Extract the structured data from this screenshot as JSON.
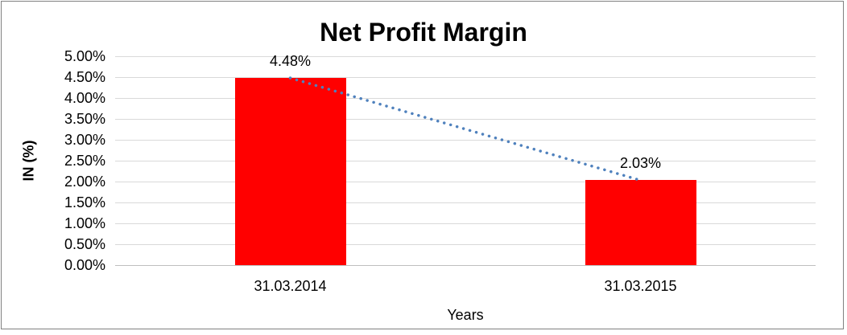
{
  "chart_data": {
    "type": "bar",
    "title": "Net Profit Margin",
    "xlabel": "Years",
    "ylabel": "IN (%)",
    "categories": [
      "31.03.2014",
      "31.03.2015"
    ],
    "series": [
      {
        "name": "Net Profit Margin",
        "values": [
          4.48,
          2.03
        ]
      }
    ],
    "value_labels": [
      "4.48%",
      "2.03%"
    ],
    "ylim": [
      0,
      5
    ],
    "ytick_step": 0.5,
    "yticks": [
      {
        "value": 0,
        "label": "0.00%"
      },
      {
        "value": 0.5,
        "label": "0.50%"
      },
      {
        "value": 1,
        "label": "1.00%"
      },
      {
        "value": 1.5,
        "label": "1.50%"
      },
      {
        "value": 2,
        "label": "2.00%"
      },
      {
        "value": 2.5,
        "label": "2.50%"
      },
      {
        "value": 3,
        "label": "3.00%"
      },
      {
        "value": 3.5,
        "label": "3.50%"
      },
      {
        "value": 4,
        "label": "4.00%"
      },
      {
        "value": 4.5,
        "label": "4.50%"
      },
      {
        "value": 5,
        "label": "5.00%"
      }
    ],
    "grid": true,
    "legend": "none",
    "trendline": {
      "type": "linear",
      "style": "dotted",
      "points": [
        4.48,
        2.03
      ]
    },
    "colors": {
      "bar": "#FF0000",
      "trendline": "#4F81BD",
      "gridline": "#D9D9D9",
      "axis_line": "#BFBFBF",
      "border": "#808080",
      "text": "#000000"
    }
  }
}
